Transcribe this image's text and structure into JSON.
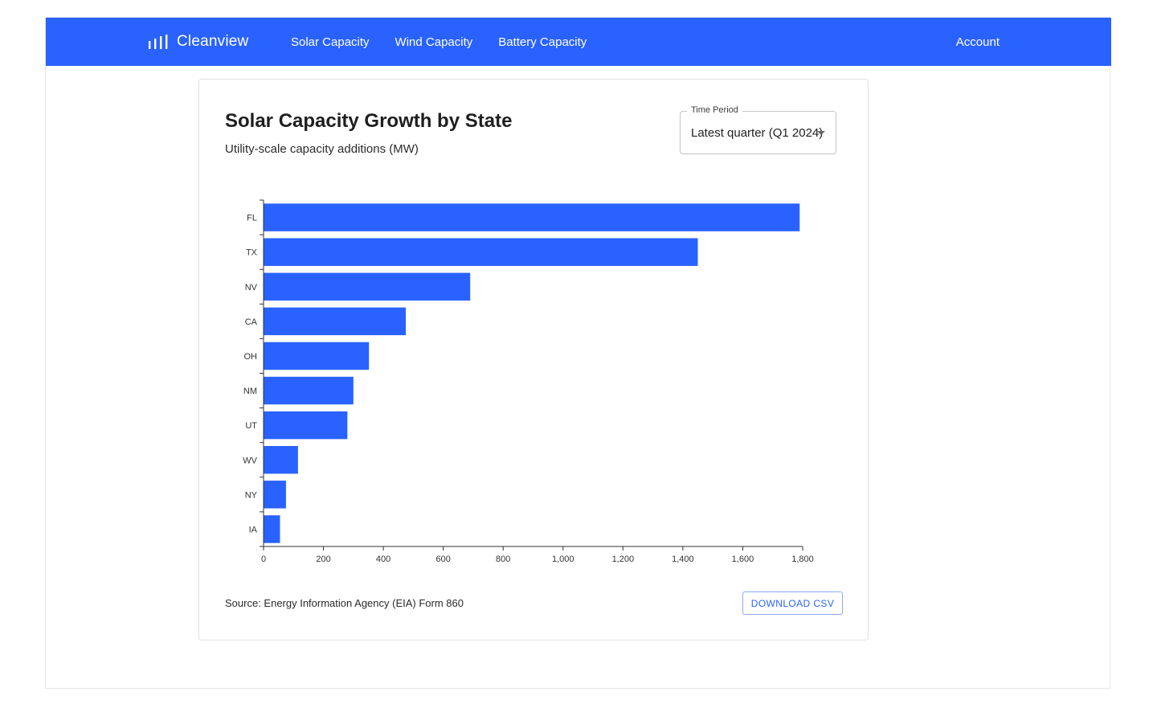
{
  "nav": {
    "brand": "Cleanview",
    "brand_icon": "bar-chart-icon",
    "links": [
      "Solar Capacity",
      "Wind Capacity",
      "Battery Capacity"
    ],
    "account": "Account",
    "color": "#2962ff"
  },
  "card": {
    "title": "Solar Capacity Growth by State",
    "subtitle": "Utility-scale capacity additions (MW)",
    "time_period": {
      "label": "Time Period",
      "value": "Latest quarter (Q1 2024)"
    },
    "source": "Source: Energy Information Agency (EIA) Form 860",
    "download_label": "DOWNLOAD CSV"
  },
  "chart_data": {
    "type": "bar",
    "orientation": "horizontal",
    "categories": [
      "FL",
      "TX",
      "NV",
      "CA",
      "OH",
      "NM",
      "UT",
      "WV",
      "NY",
      "IA"
    ],
    "values": [
      1790,
      1450,
      690,
      475,
      352,
      300,
      280,
      115,
      75,
      55
    ],
    "xlim": [
      0,
      1800
    ],
    "xticks": [
      0,
      200,
      400,
      600,
      800,
      1000,
      1200,
      1400,
      1600,
      1800
    ],
    "xtick_labels": [
      "0",
      "200",
      "400",
      "600",
      "800",
      "1,000",
      "1,200",
      "1,400",
      "1,600",
      "1,800"
    ],
    "bar_color": "#2962ff",
    "grid": false,
    "legend": "none"
  }
}
